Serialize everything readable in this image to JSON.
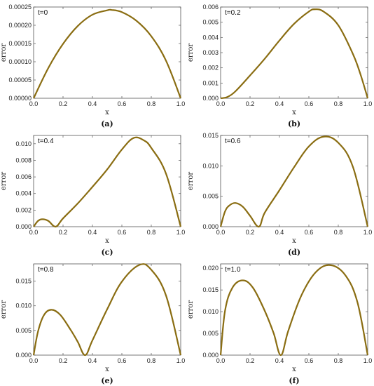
{
  "chart_data": [
    {
      "type": "line",
      "panel_label": "(a)",
      "annotation": "t=0",
      "xlabel": "x",
      "ylabel": "error",
      "xlim": [
        0,
        1
      ],
      "ylim": [
        0,
        0.00025
      ],
      "x_ticks": [
        "0.0",
        "0.2",
        "0.4",
        "0.6",
        "0.8",
        "1.0"
      ],
      "y_ticks": [
        "0.00000",
        "0.00005",
        "0.00010",
        "0.00015",
        "0.00020",
        "0.00025"
      ],
      "y_tick_values": [
        0,
        5e-05,
        0.0001,
        0.00015,
        0.0002,
        0.00025
      ],
      "series": [
        {
          "color": "#8a6d12",
          "x": [
            0,
            0.1,
            0.2,
            0.3,
            0.4,
            0.5,
            0.53,
            0.6,
            0.7,
            0.8,
            0.9,
            1.0
          ],
          "y": [
            0,
            8.3e-05,
            0.000149,
            0.000198,
            0.000229,
            0.000241,
            0.000242,
            0.000236,
            0.000212,
            0.00017,
            0.000103,
            0
          ]
        }
      ]
    },
    {
      "type": "line",
      "panel_label": "(b)",
      "annotation": "t=0.2",
      "xlabel": "x",
      "ylabel": "error",
      "xlim": [
        0,
        1
      ],
      "ylim": [
        0,
        0.006
      ],
      "x_ticks": [
        "0.0",
        "0.2",
        "0.4",
        "0.6",
        "0.8",
        "1.0"
      ],
      "y_ticks": [
        "0.000",
        "0.001",
        "0.002",
        "0.003",
        "0.004",
        "0.005",
        "0.006"
      ],
      "y_tick_values": [
        0,
        0.001,
        0.002,
        0.003,
        0.004,
        0.005,
        0.006
      ],
      "series": [
        {
          "color": "#8a6d12",
          "x": [
            0,
            0.02,
            0.05,
            0.1,
            0.2,
            0.3,
            0.4,
            0.5,
            0.6,
            0.64,
            0.7,
            0.8,
            0.9,
            0.95,
            1.0
          ],
          "y": [
            0,
            2e-05,
            0.0001,
            0.00045,
            0.0015,
            0.0026,
            0.0038,
            0.0049,
            0.0057,
            0.00585,
            0.0057,
            0.0048,
            0.0029,
            0.0016,
            0
          ]
        }
      ]
    },
    {
      "type": "line",
      "panel_label": "(c)",
      "annotation": "t=0.4",
      "xlabel": "x",
      "ylabel": "error",
      "xlim": [
        0,
        1
      ],
      "ylim": [
        0,
        0.011
      ],
      "x_ticks": [
        "0.0",
        "0.2",
        "0.4",
        "0.6",
        "0.8",
        "1.0"
      ],
      "y_ticks": [
        "0.000",
        "0.002",
        "0.004",
        "0.006",
        "0.008",
        "0.010"
      ],
      "y_tick_values": [
        0,
        0.002,
        0.004,
        0.006,
        0.008,
        0.01
      ],
      "series": [
        {
          "color": "#8a6d12",
          "x": [
            0,
            0.03,
            0.06,
            0.1,
            0.15,
            0.2,
            0.3,
            0.4,
            0.5,
            0.6,
            0.68,
            0.75,
            0.8,
            0.9,
            1.0
          ],
          "y": [
            0,
            0.0007,
            0.0009,
            0.0007,
            0,
            0.001,
            0.0028,
            0.0048,
            0.0069,
            0.0093,
            0.0107,
            0.0104,
            0.0095,
            0.0064,
            0
          ]
        }
      ]
    },
    {
      "type": "line",
      "panel_label": "(d)",
      "annotation": "t=0.6",
      "xlabel": "x",
      "ylabel": "error",
      "xlim": [
        0,
        1
      ],
      "ylim": [
        0,
        0.015
      ],
      "x_ticks": [
        "0.0",
        "0.2",
        "0.4",
        "0.6",
        "0.8",
        "1.0"
      ],
      "y_ticks": [
        "0.000",
        "0.005",
        "0.010",
        "0.015"
      ],
      "y_tick_values": [
        0,
        0.005,
        0.01,
        0.015
      ],
      "series": [
        {
          "color": "#8a6d12",
          "x": [
            0,
            0.03,
            0.06,
            0.1,
            0.15,
            0.2,
            0.26,
            0.3,
            0.4,
            0.5,
            0.6,
            0.7,
            0.8,
            0.9,
            1.0
          ],
          "y": [
            0,
            0.0025,
            0.0035,
            0.0039,
            0.0033,
            0.0018,
            0,
            0.0023,
            0.006,
            0.0098,
            0.0132,
            0.0148,
            0.0138,
            0.0098,
            0
          ]
        }
      ]
    },
    {
      "type": "line",
      "panel_label": "(e)",
      "annotation": "t=0.8",
      "xlabel": "x",
      "ylabel": "error",
      "xlim": [
        0,
        1
      ],
      "ylim": [
        0,
        0.0185
      ],
      "x_ticks": [
        "0.0",
        "0.2",
        "0.4",
        "0.6",
        "0.8",
        "1.0"
      ],
      "y_ticks": [
        "0.000",
        "0.005",
        "0.010",
        "0.015"
      ],
      "y_tick_values": [
        0,
        0.005,
        0.01,
        0.015
      ],
      "series": [
        {
          "color": "#8a6d12",
          "x": [
            0,
            0.03,
            0.07,
            0.12,
            0.18,
            0.25,
            0.3,
            0.35,
            0.4,
            0.5,
            0.6,
            0.72,
            0.8,
            0.9,
            1.0
          ],
          "y": [
            0,
            0.0048,
            0.0081,
            0.0092,
            0.0082,
            0.0052,
            0.0027,
            0,
            0.003,
            0.0093,
            0.0149,
            0.0183,
            0.0173,
            0.0121,
            0
          ]
        }
      ]
    },
    {
      "type": "line",
      "panel_label": "(f)",
      "annotation": "t=1.0",
      "xlabel": "x",
      "ylabel": "error",
      "xlim": [
        0,
        1
      ],
      "ylim": [
        0,
        0.021
      ],
      "x_ticks": [
        "0.0",
        "0.2",
        "0.4",
        "0.6",
        "0.8",
        "1.0"
      ],
      "y_ticks": [
        "0.000",
        "0.005",
        "0.010",
        "0.015",
        "0.020"
      ],
      "y_tick_values": [
        0,
        0.005,
        0.01,
        0.015,
        0.02
      ],
      "series": [
        {
          "color": "#8a6d12",
          "x": [
            0,
            0.03,
            0.08,
            0.15,
            0.22,
            0.3,
            0.36,
            0.41,
            0.46,
            0.55,
            0.65,
            0.75,
            0.85,
            0.93,
            1.0
          ],
          "y": [
            0,
            0.0102,
            0.0155,
            0.0172,
            0.0155,
            0.0102,
            0.0051,
            0,
            0.0056,
            0.0138,
            0.0192,
            0.0207,
            0.0183,
            0.0122,
            0
          ]
        }
      ]
    }
  ]
}
